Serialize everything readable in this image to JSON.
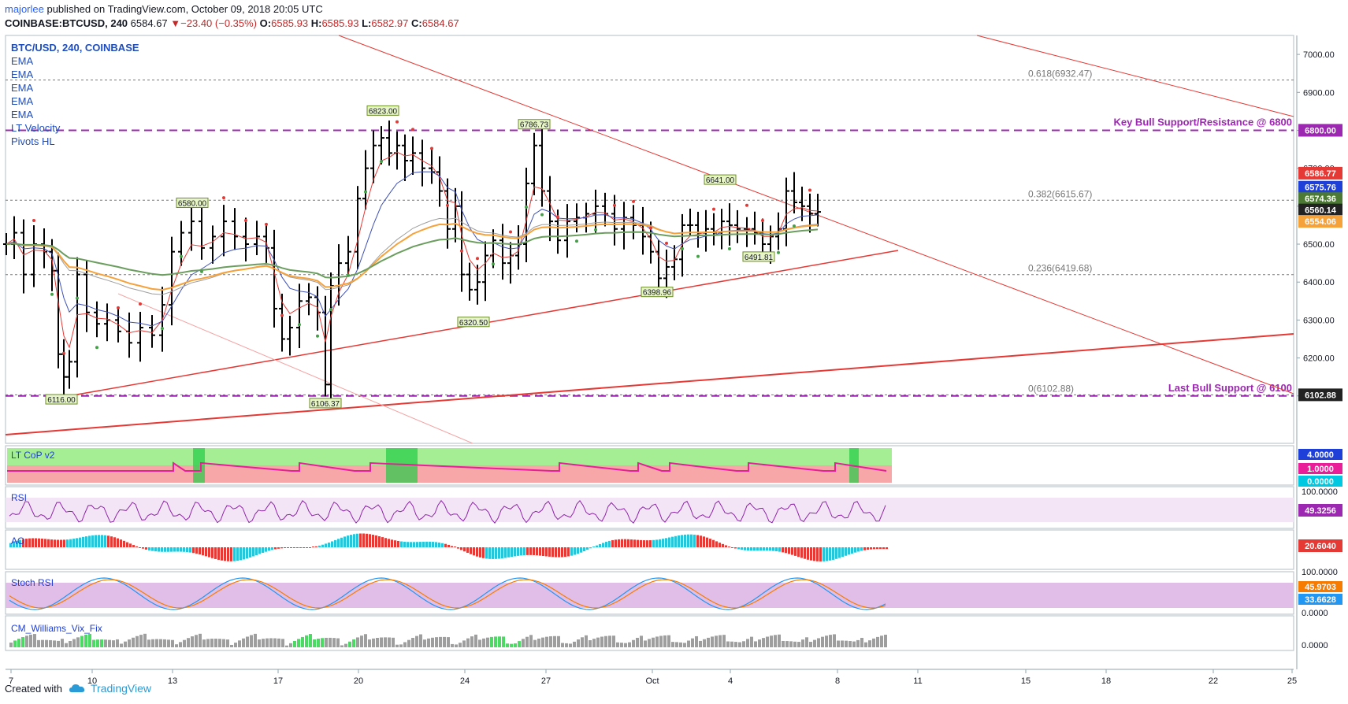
{
  "header": {
    "author": "majorlee",
    "published_text": " published on TradingView.com, October 09, 2018 20:05 UTC",
    "symbol_line": "COINBASE:BTCUSD, 240",
    "last": "6584.67",
    "change": "−23.40 (−0.35%)",
    "o_label": "O:",
    "o": "6585.93",
    "h_label": "H:",
    "h": "6585.93",
    "l_label": "L:",
    "l": "6582.97",
    "c_label": "C:",
    "c": "6584.67"
  },
  "legend": {
    "symbol": "BTC/USD, 240, COINBASE",
    "items": [
      "EMA",
      "EMA",
      "EMA",
      "EMA",
      "EMA",
      "LT Velocity",
      "Pivots HL"
    ]
  },
  "footer": {
    "created_with": "Created with",
    "brand": "TradingView"
  },
  "colors": {
    "candle": "#000000",
    "trendline": "#e53935",
    "dashed_level": "#9c27b0",
    "ema_red": "#e53935",
    "ema_blue": "#3f51b5",
    "ema_gray": "#9e9e9e",
    "ema_orange": "#f6a23b",
    "ema_green": "#6b9e5e",
    "grid": "#cfd8dc"
  },
  "chart_data": [
    {
      "type": "line",
      "name": "price",
      "x_ticks": [
        "7",
        "10",
        "13",
        "17",
        "20",
        "24",
        "27",
        "Oct",
        "4",
        "8",
        "11",
        "15",
        "18",
        "22",
        "25"
      ],
      "y_ticks": [
        "7000.00",
        "6900.00",
        "6800.00",
        "6700.00",
        "6600.00",
        "6500.00",
        "6400.00",
        "6300.00",
        "6200.00",
        "6100.00"
      ],
      "ylim": [
        5975,
        7050
      ],
      "close_path": [
        [
          0,
          6500
        ],
        [
          10,
          6530
        ],
        [
          22,
          6420
        ],
        [
          35,
          6500
        ],
        [
          48,
          6480
        ],
        [
          58,
          6430
        ],
        [
          66,
          6210
        ],
        [
          73,
          6150
        ],
        [
          80,
          6190
        ],
        [
          90,
          6420
        ],
        [
          102,
          6320
        ],
        [
          115,
          6290
        ],
        [
          128,
          6300
        ],
        [
          142,
          6270
        ],
        [
          156,
          6240
        ],
        [
          170,
          6280
        ],
        [
          185,
          6260
        ],
        [
          198,
          6340
        ],
        [
          210,
          6480
        ],
        [
          222,
          6530
        ],
        [
          235,
          6560
        ],
        [
          248,
          6490
        ],
        [
          262,
          6520
        ],
        [
          276,
          6560
        ],
        [
          290,
          6520
        ],
        [
          304,
          6500
        ],
        [
          318,
          6520
        ],
        [
          330,
          6490
        ],
        [
          340,
          6330
        ],
        [
          350,
          6250
        ],
        [
          360,
          6280
        ],
        [
          372,
          6350
        ],
        [
          384,
          6360
        ],
        [
          395,
          6320
        ],
        [
          405,
          6130
        ],
        [
          412,
          6390
        ],
        [
          422,
          6450
        ],
        [
          434,
          6480
        ],
        [
          446,
          6620
        ],
        [
          456,
          6700
        ],
        [
          466,
          6760
        ],
        [
          476,
          6780
        ],
        [
          486,
          6740
        ],
        [
          496,
          6760
        ],
        [
          506,
          6720
        ],
        [
          516,
          6740
        ],
        [
          528,
          6700
        ],
        [
          540,
          6690
        ],
        [
          550,
          6640
        ],
        [
          560,
          6540
        ],
        [
          570,
          6600
        ],
        [
          578,
          6420
        ],
        [
          588,
          6380
        ],
        [
          598,
          6400
        ],
        [
          608,
          6470
        ],
        [
          618,
          6510
        ],
        [
          630,
          6450
        ],
        [
          640,
          6470
        ],
        [
          650,
          6500
        ],
        [
          660,
          6660
        ],
        [
          670,
          6760
        ],
        [
          680,
          6640
        ],
        [
          690,
          6560
        ],
        [
          700,
          6510
        ],
        [
          712,
          6560
        ],
        [
          724,
          6570
        ],
        [
          736,
          6580
        ],
        [
          748,
          6600
        ],
        [
          760,
          6580
        ],
        [
          772,
          6540
        ],
        [
          784,
          6570
        ],
        [
          796,
          6550
        ],
        [
          808,
          6520
        ],
        [
          818,
          6480
        ],
        [
          828,
          6410
        ],
        [
          838,
          6440
        ],
        [
          848,
          6460
        ],
        [
          858,
          6550
        ],
        [
          868,
          6550
        ],
        [
          878,
          6530
        ],
        [
          888,
          6540
        ],
        [
          898,
          6530
        ],
        [
          908,
          6560
        ],
        [
          918,
          6550
        ],
        [
          928,
          6540
        ],
        [
          940,
          6540
        ],
        [
          950,
          6530
        ],
        [
          960,
          6500
        ],
        [
          970,
          6520
        ],
        [
          980,
          6540
        ],
        [
          990,
          6640
        ],
        [
          1000,
          6610
        ],
        [
          1010,
          6600
        ],
        [
          1020,
          6580
        ],
        [
          1030,
          6585
        ]
      ],
      "pivot_labels": [
        {
          "text": "6823.00",
          "x": 478,
          "y": 6823
        },
        {
          "text": "6786.73",
          "x": 670,
          "y": 6787
        },
        {
          "text": "6641.00",
          "x": 906,
          "y": 6641
        },
        {
          "text": "6580.00",
          "x": 236,
          "y": 6580
        },
        {
          "text": "6116.00",
          "x": 70,
          "y": 6116
        },
        {
          "text": "6106.37",
          "x": 405,
          "y": 6106
        },
        {
          "text": "6320.50",
          "x": 593,
          "y": 6320
        },
        {
          "text": "6398.96",
          "x": 826,
          "y": 6399
        },
        {
          "text": "6491.81",
          "x": 955,
          "y": 6492
        }
      ],
      "annotations": [
        {
          "text": "Key Bull Support/Resistance @ 6800",
          "y": 6800
        },
        {
          "text": "Last Bull Support @ 6100",
          "y": 6100
        },
        {
          "text": "0.618(6932.47)",
          "y": 6932.47
        },
        {
          "text": "0.382(6615.67)",
          "y": 6615.67
        },
        {
          "text": "0.236(6419.68)",
          "y": 6419.68
        },
        {
          "text": "0(6102.88)",
          "y": 6102.88
        }
      ],
      "price_tags": [
        {
          "text": "6800.00",
          "y": 6800,
          "color": "#9c27b0"
        },
        {
          "text": "6586.77",
          "y": 6687,
          "color": "#e53935"
        },
        {
          "text": "6575.76",
          "y": 6650,
          "color": "#1e3fd8"
        },
        {
          "text": "6574.36",
          "y": 6620,
          "color": "#4c7a34"
        },
        {
          "text": "6560.14",
          "y": 6590,
          "color": "#222222"
        },
        {
          "text": "6554.06",
          "y": 6560,
          "color": "#f6a23b"
        },
        {
          "text": "6102.88",
          "y": 6102.88,
          "color": "#222222"
        }
      ]
    },
    {
      "type": "line",
      "name": "LT CoP v2",
      "tags": [
        {
          "text": "4.0000",
          "color": "#1e3fd8"
        },
        {
          "text": "1.0000",
          "color": "#e91e99"
        },
        {
          "text": "0.0000",
          "color": "#00c8e0"
        }
      ]
    },
    {
      "type": "line",
      "name": "RSI",
      "tags": [
        {
          "text": "100.0000",
          "color": ""
        },
        {
          "text": "49.3256",
          "color": "#9c27b0"
        }
      ]
    },
    {
      "type": "bar",
      "name": "AO",
      "tags": [
        {
          "text": "20.6040",
          "color": "#e53935"
        }
      ]
    },
    {
      "type": "line",
      "name": "Stoch RSI",
      "tags": [
        {
          "text": "100.0000",
          "color": ""
        },
        {
          "text": "45.9703",
          "color": "#f57c00"
        },
        {
          "text": "33.6628",
          "color": "#2196f3"
        },
        {
          "text": "0.0000",
          "color": ""
        }
      ]
    },
    {
      "type": "bar",
      "name": "CM_Williams_Vix_Fix",
      "tags": [
        {
          "text": "0.0000",
          "color": ""
        }
      ]
    }
  ]
}
